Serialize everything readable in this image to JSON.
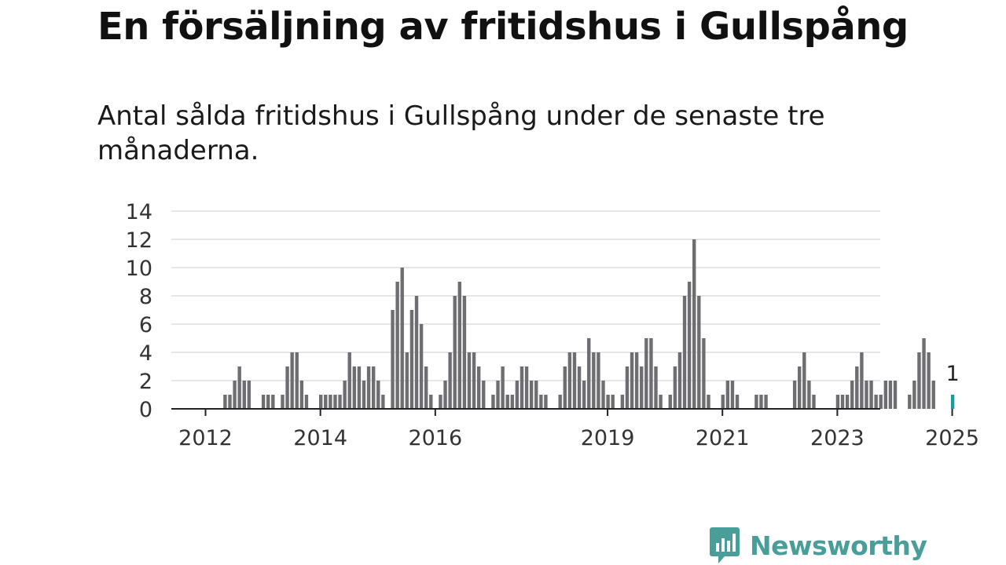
{
  "title": "En försäljning av fritidshus i Gullspång",
  "subtitle": "Antal sålda fritidshus i Gullspång under de senaste tre månaderna.",
  "brand": {
    "name": "Newsworthy",
    "logo_icon": "bar-chart-speech-bubble-icon",
    "color": "#4a9e99"
  },
  "colors": {
    "bar": "#6e6e72",
    "highlight": "#1a9c9c",
    "grid": "#dddddd",
    "axis": "#222222"
  },
  "chart_data": {
    "type": "bar",
    "x_start": "2012-01",
    "frequency": "monthly",
    "ylim": [
      0,
      14
    ],
    "yticks": [
      0,
      2,
      4,
      6,
      8,
      10,
      12,
      14
    ],
    "xtick_labels": [
      {
        "label": "2012",
        "at": "2012-01"
      },
      {
        "label": "2014",
        "at": "2014-01"
      },
      {
        "label": "2016",
        "at": "2016-01"
      },
      {
        "label": "2019",
        "at": "2019-01"
      },
      {
        "label": "2021",
        "at": "2021-01"
      },
      {
        "label": "2023",
        "at": "2023-01"
      },
      {
        "label": "2025",
        "at": "2025-01"
      }
    ],
    "values": [
      0,
      0,
      0,
      0,
      0,
      0,
      0,
      0,
      0,
      0,
      1,
      1,
      2,
      3,
      2,
      2,
      0,
      0,
      1,
      1,
      1,
      0,
      1,
      3,
      4,
      4,
      2,
      1,
      0,
      0,
      1,
      1,
      1,
      1,
      1,
      2,
      4,
      3,
      3,
      2,
      3,
      3,
      2,
      1,
      0,
      7,
      9,
      10,
      4,
      7,
      8,
      6,
      3,
      1,
      0,
      1,
      2,
      4,
      8,
      9,
      8,
      4,
      4,
      3,
      2,
      0,
      1,
      2,
      3,
      1,
      1,
      2,
      3,
      3,
      2,
      2,
      1,
      1,
      0,
      0,
      1,
      3,
      4,
      4,
      3,
      2,
      5,
      4,
      4,
      2,
      1,
      1,
      0,
      1,
      3,
      4,
      4,
      3,
      5,
      5,
      3,
      1,
      0,
      1,
      3,
      4,
      8,
      9,
      12,
      8,
      5,
      1,
      0,
      0,
      1,
      2,
      2,
      1,
      0,
      0,
      0,
      1,
      1,
      1,
      0,
      0,
      0,
      0,
      0,
      2,
      3,
      4,
      2,
      1,
      0,
      0,
      0,
      0,
      1,
      1,
      1,
      2,
      3,
      4,
      2,
      2,
      1,
      1,
      2,
      2,
      2,
      0,
      0,
      1,
      2,
      4,
      5,
      4,
      2,
      0,
      0,
      0,
      1
    ],
    "highlight": {
      "value": 1,
      "label": "1"
    }
  }
}
